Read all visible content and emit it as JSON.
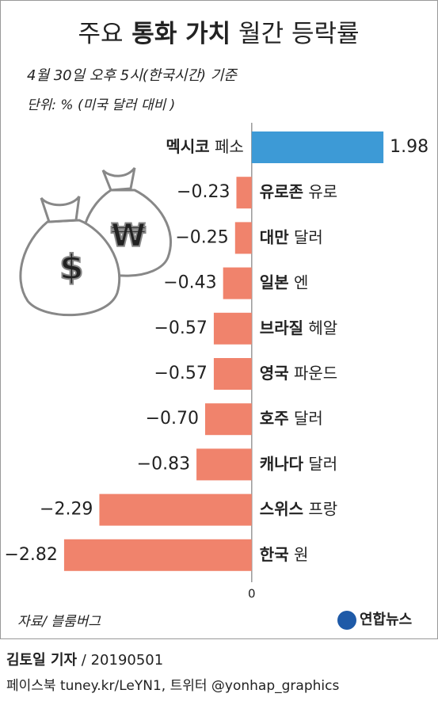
{
  "chart_data": {
    "type": "bar",
    "orientation": "horizontal",
    "title": "주요 통화 가치 월간 등락률",
    "subtitle": "4월 30일 오후 5시(한국시간) 기준",
    "unit_note": "단위: % (미국 달러 대비 )",
    "categories": [
      "멕시코 페소",
      "유로존 유로",
      "대만 달러",
      "일본 엔",
      "브라질 헤알",
      "영국 파운드",
      "호주 달러",
      "캐나다 달러",
      "스위스 프랑",
      "한국 원"
    ],
    "values": [
      1.98,
      -0.23,
      -0.25,
      -0.43,
      -0.57,
      -0.57,
      -0.7,
      -0.83,
      -2.29,
      -2.82
    ],
    "value_labels": [
      "1.98",
      "−0.23",
      "−0.25",
      "−0.43",
      "−0.57",
      "−0.57",
      "−0.70",
      "−0.83",
      "−2.29",
      "−2.82"
    ],
    "positive_color": "#3d9ad6",
    "negative_color": "#f0836c",
    "xlim": [
      -2.95,
      2.05
    ],
    "xticks": [
      0
    ],
    "source": "자료/ 블룸버그",
    "logo": "연합뉴스",
    "byline": "김토일 기자 / 20190501",
    "footer": "페이스북 tuney.kr/LeYN1, 트위터 @yonhap_graphics"
  }
}
